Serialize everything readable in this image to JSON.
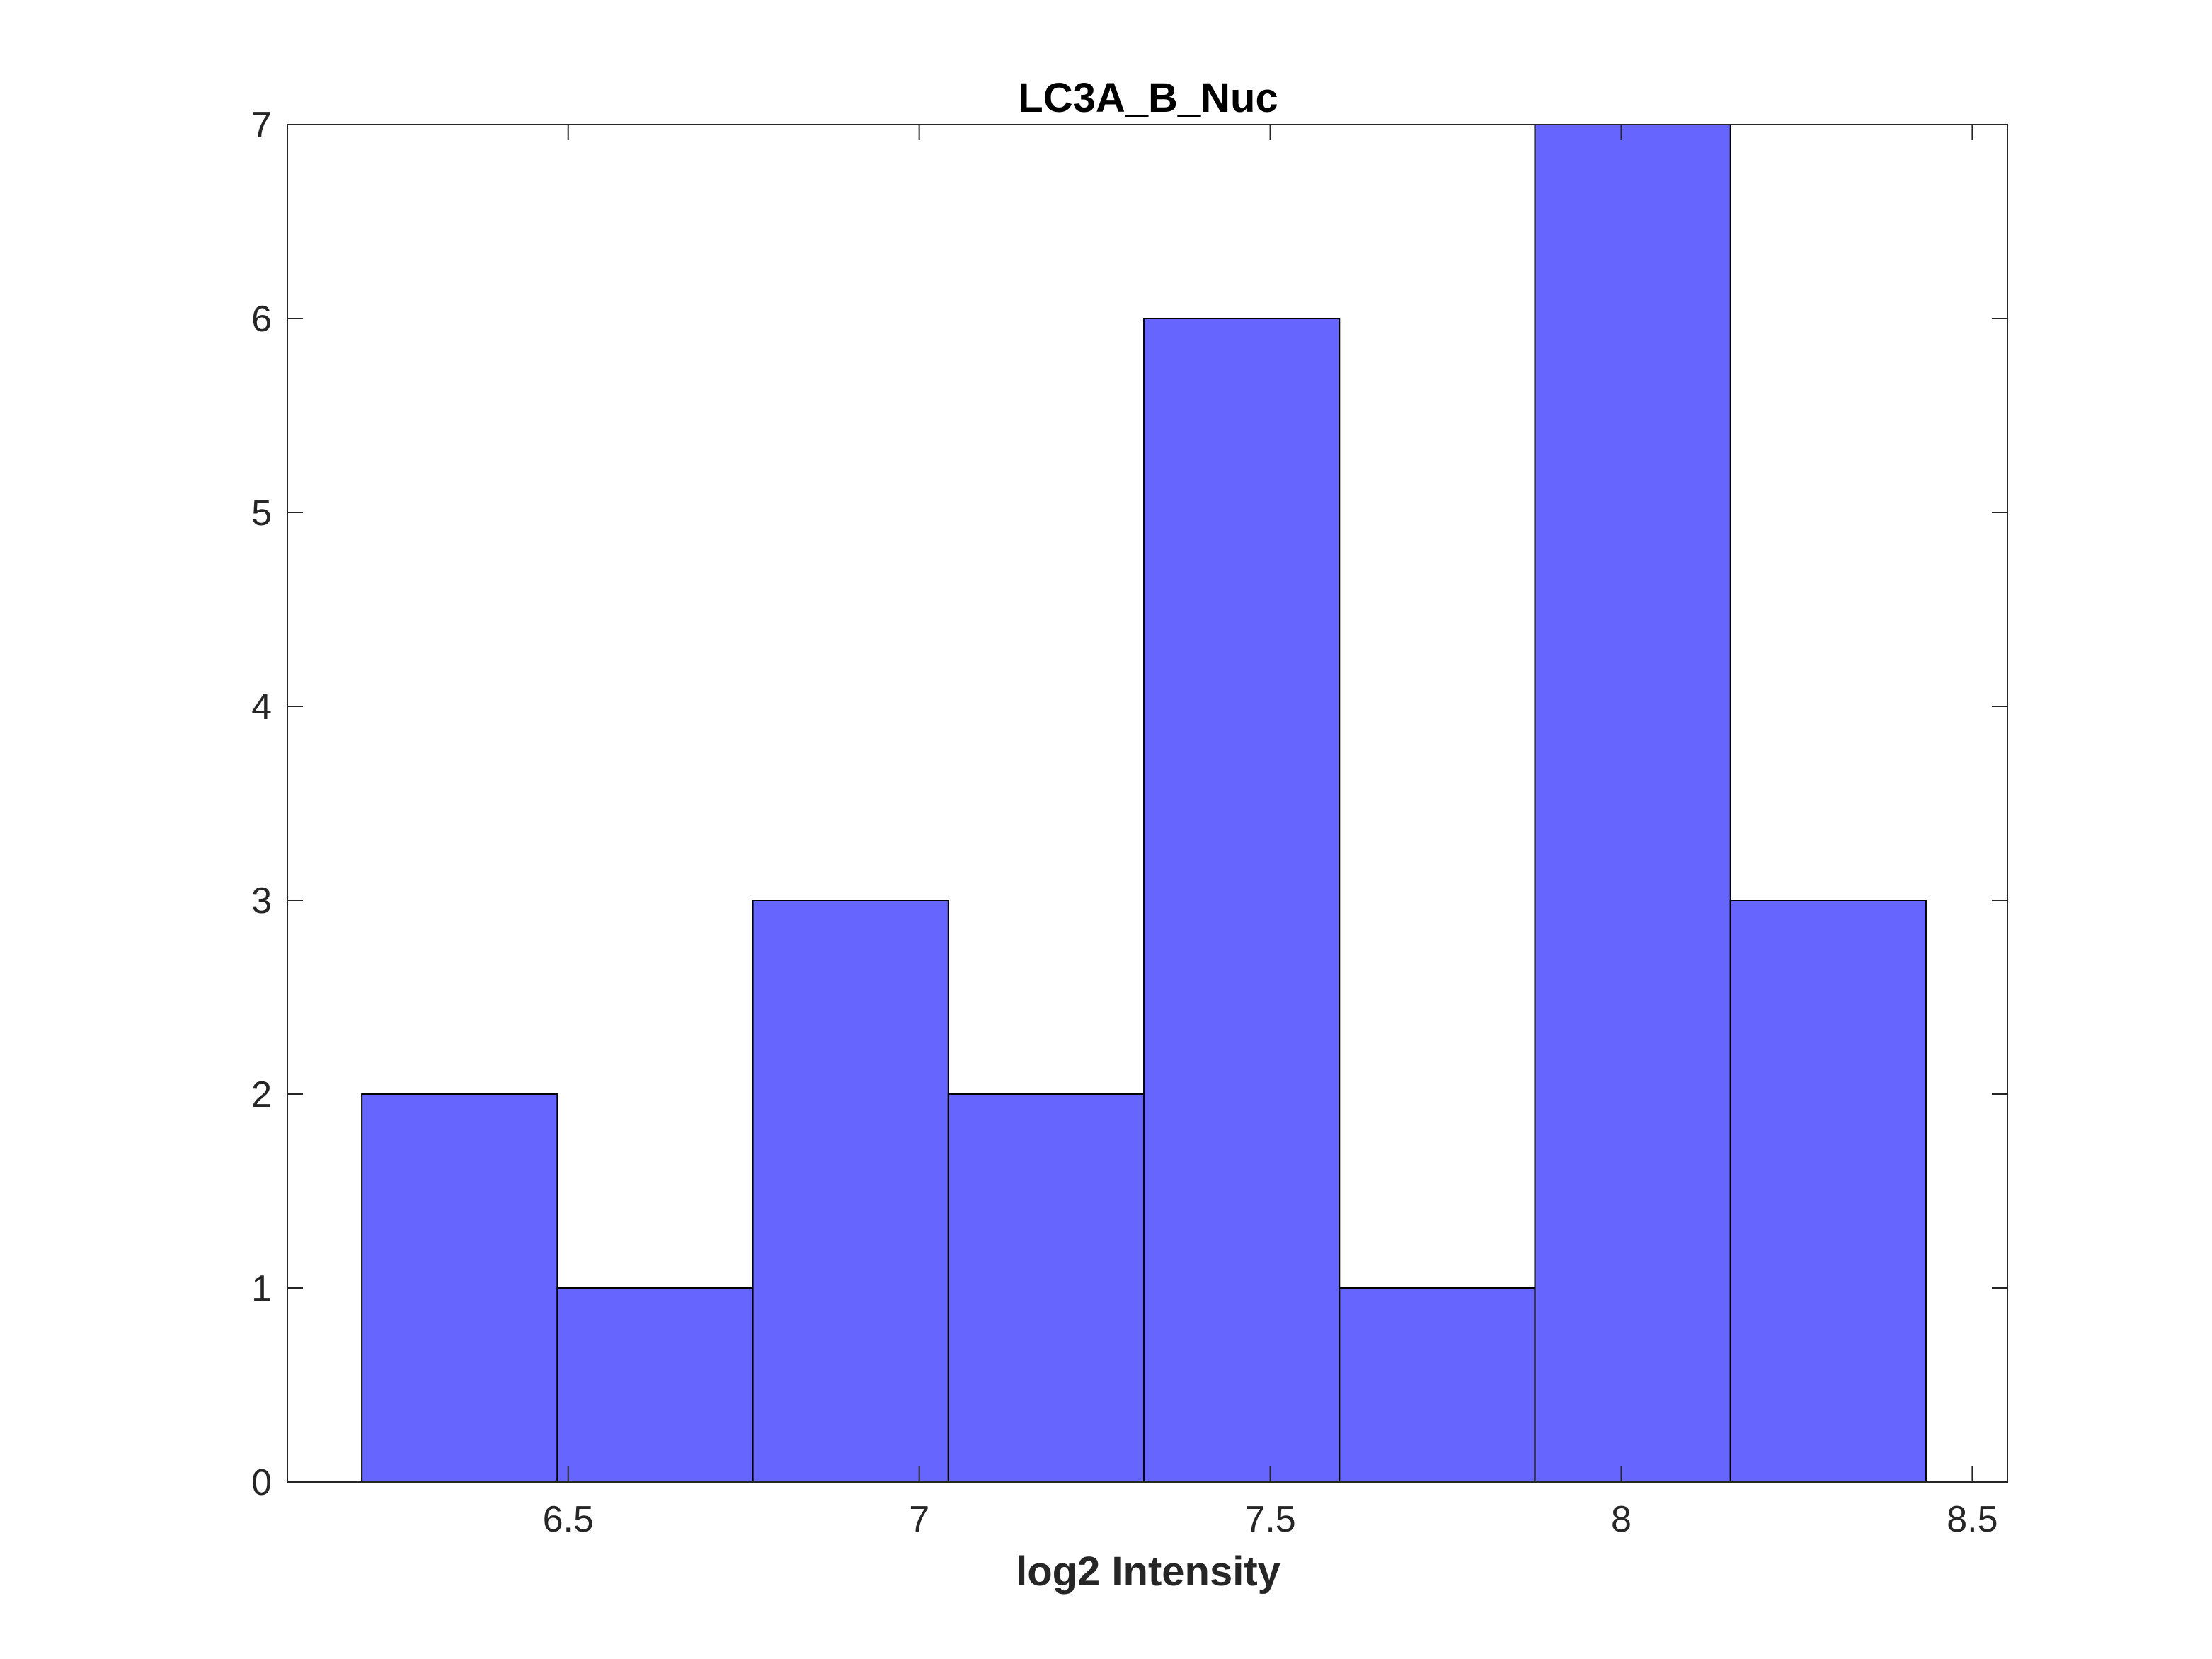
{
  "chart_data": {
    "type": "bar",
    "title": "LC3A_B_Nuc",
    "xlabel": "log2 Intensity",
    "ylabel": "",
    "bin_edges": [
      6.206,
      6.4845,
      6.763,
      7.0415,
      7.32,
      7.5985,
      7.877,
      8.1555,
      8.434
    ],
    "values": [
      2,
      1,
      3,
      2,
      6,
      1,
      7,
      3
    ],
    "xlim": [
      6.1,
      8.55
    ],
    "ylim": [
      0,
      7
    ],
    "xticks": [
      6.5,
      7,
      7.5,
      8,
      8.5
    ],
    "xtick_labels": [
      "6.5",
      "7",
      "7.5",
      "8",
      "8.5"
    ],
    "yticks": [
      0,
      1,
      2,
      3,
      4,
      5,
      6,
      7
    ],
    "ytick_labels": [
      "0",
      "1",
      "2",
      "3",
      "4",
      "5",
      "6",
      "7"
    ],
    "bar_color": "#6666ff",
    "edge_color": "#000000",
    "grid": false,
    "legend": "none"
  }
}
